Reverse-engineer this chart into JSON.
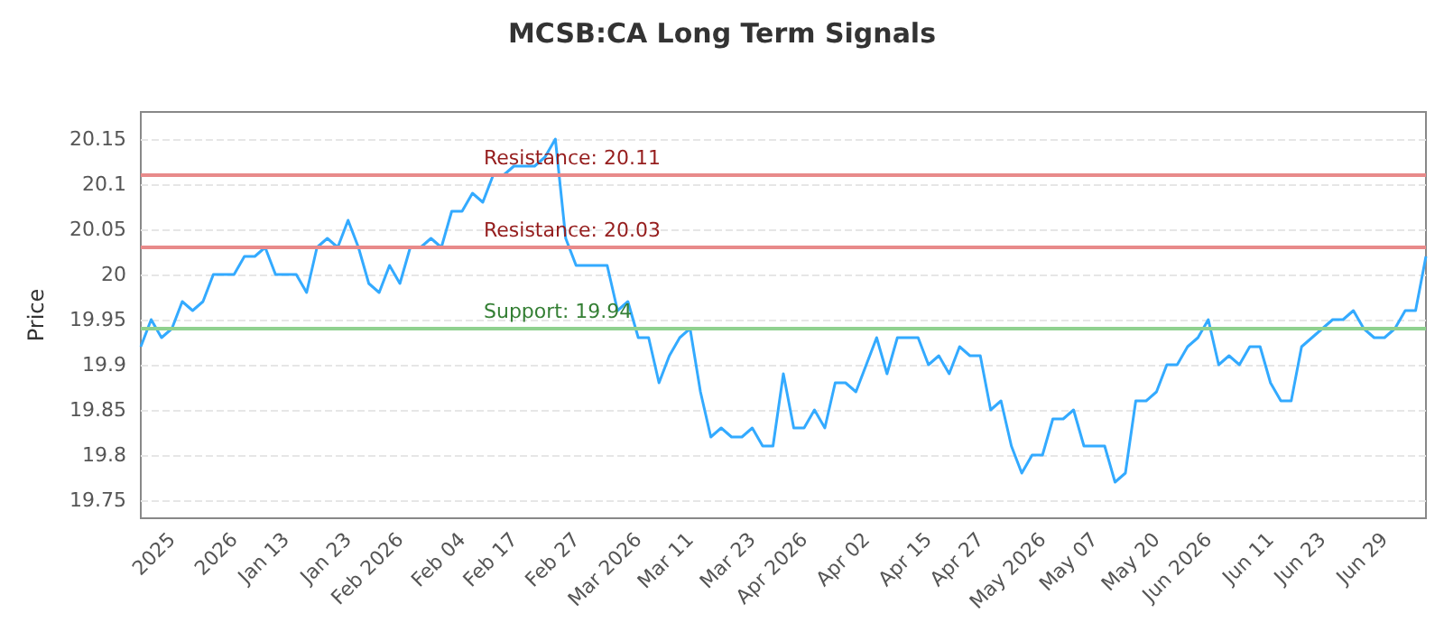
{
  "chart_data": {
    "type": "line",
    "title": "MCSB:CA Long Term Signals",
    "ylabel": "Price",
    "categories": [
      null,
      null,
      null,
      "2025",
      null,
      null,
      null,
      null,
      null,
      "2026",
      null,
      null,
      null,
      null,
      "Jan 13",
      null,
      null,
      null,
      null,
      null,
      "Jan 23",
      null,
      null,
      null,
      null,
      "Feb 2026",
      null,
      null,
      null,
      null,
      null,
      "Feb 04",
      null,
      null,
      null,
      null,
      "Feb 17",
      null,
      null,
      null,
      null,
      null,
      "Feb 27",
      null,
      null,
      null,
      null,
      null,
      "Mar 2026",
      null,
      null,
      null,
      null,
      "Mar 11",
      null,
      null,
      null,
      null,
      null,
      "Mar 23",
      null,
      null,
      null,
      null,
      "Apr 2026",
      null,
      null,
      null,
      null,
      null,
      "Apr 02",
      null,
      null,
      null,
      null,
      null,
      "Apr 15",
      null,
      null,
      null,
      null,
      "Apr 27",
      null,
      null,
      null,
      null,
      null,
      "May 2026",
      null,
      null,
      null,
      null,
      "May 07",
      null,
      null,
      null,
      null,
      null,
      "May 20",
      null,
      null,
      null,
      null,
      "Jun 2026",
      null,
      null,
      null,
      null,
      null,
      "Jun 11",
      null,
      null,
      null,
      null,
      "Jun 23",
      null,
      null,
      null,
      null,
      null,
      "Jun 29",
      null,
      null,
      null,
      null
    ],
    "series": [
      {
        "color": "#33aaff",
        "values": [
          19.92,
          19.95,
          19.93,
          19.94,
          19.97,
          19.96,
          19.97,
          20.0,
          20.0,
          20.0,
          20.02,
          20.02,
          20.03,
          20.0,
          20.0,
          20.0,
          19.98,
          20.03,
          20.04,
          20.03,
          20.06,
          20.03,
          19.99,
          19.98,
          20.01,
          19.99,
          20.03,
          20.03,
          20.04,
          20.03,
          20.07,
          20.07,
          20.09,
          20.08,
          20.11,
          20.11,
          20.12,
          20.12,
          20.12,
          20.13,
          20.15,
          20.04,
          20.01,
          20.01,
          20.01,
          20.01,
          19.96,
          19.97,
          19.93,
          19.93,
          19.88,
          19.91,
          19.93,
          19.94,
          19.87,
          19.82,
          19.83,
          19.82,
          19.82,
          19.83,
          19.81,
          19.81,
          19.89,
          19.83,
          19.83,
          19.85,
          19.83,
          19.88,
          19.88,
          19.87,
          19.9,
          19.93,
          19.89,
          19.93,
          19.93,
          19.93,
          19.9,
          19.91,
          19.89,
          19.92,
          19.91,
          19.91,
          19.85,
          19.86,
          19.81,
          19.78,
          19.8,
          19.8,
          19.84,
          19.84,
          19.85,
          19.81,
          19.81,
          19.81,
          19.77,
          19.78,
          19.86,
          19.86,
          19.87,
          19.9,
          19.9,
          19.92,
          19.93,
          19.95,
          19.9,
          19.91,
          19.9,
          19.92,
          19.92,
          19.88,
          19.86,
          19.86,
          19.92,
          19.93,
          19.94,
          19.95,
          19.95,
          19.96,
          19.94,
          19.93,
          19.93,
          19.94,
          19.96,
          19.96,
          20.02
        ]
      }
    ],
    "ylim": [
      19.73,
      20.18
    ],
    "yticks": [
      19.75,
      19.8,
      19.85,
      19.9,
      19.95,
      20.0,
      20.05,
      20.1,
      20.15
    ],
    "grid": "y",
    "marker": "none",
    "line_style": "solid",
    "ref_lines": [
      {
        "axis": "y",
        "value": 20.11,
        "label": "Resistance: 20.11",
        "color": "#e88a8a"
      },
      {
        "axis": "y",
        "value": 20.03,
        "label": "Resistance: 20.03",
        "color": "#e88a8a"
      },
      {
        "axis": "y",
        "value": 19.94,
        "label": "Support: 19.94",
        "color": "#8fd18f"
      }
    ]
  }
}
